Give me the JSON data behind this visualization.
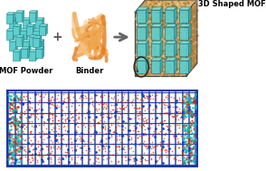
{
  "bg_color": "#ffffff",
  "mof_color": "#5ecece",
  "mof_top_color": "#7de0e0",
  "mof_right_color": "#3aacac",
  "mof_edge_color": "#2a8888",
  "binder_color": "#e07818",
  "binder_light": "#f0a850",
  "binder_pale": "#f5c888",
  "shaped_bg": "#c8a870",
  "shaped_speckle_colors": [
    "#a06828",
    "#d4a858",
    "#e8c080",
    "#8a5020",
    "#f0d090",
    "#b87830",
    "#c49040"
  ],
  "shaped_border": "#444444",
  "shaped_top": "#d8b870",
  "shaped_right": "#b08040",
  "crystal_color": "#5ecece",
  "crystal_top": "#7de0e0",
  "crystal_right": "#3aacac",
  "crystal_edge": "#2a7a7a",
  "label_mof": "MOF Powder",
  "label_binder": "Binder",
  "label_shaped": "3D Shaped MOF",
  "bottom_border": "#1a3a9a",
  "bottom_line_color": "#1a3a9a",
  "scatter_red": "#cc2200",
  "scatter_blue": "#1144cc",
  "scatter_cyan": "#20b0b0",
  "font_size": 6.0,
  "plus_size": 10,
  "arrow_color": "#666666"
}
